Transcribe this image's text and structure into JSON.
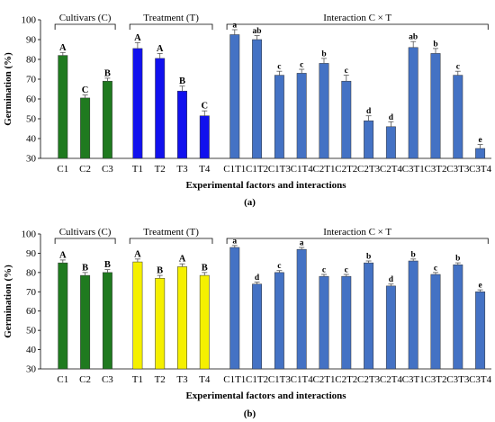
{
  "chart_data": [
    {
      "type": "bar",
      "panel_label": "(a)",
      "ylabel": "Germination (%)",
      "xlabel": "Experimental factors and interactions",
      "ylim": [
        30,
        100
      ],
      "yticks": [
        30,
        40,
        50,
        60,
        70,
        80,
        90,
        100
      ],
      "grid": false,
      "groups": [
        {
          "name": "Cultivars (C)",
          "color": "#1f7a1f",
          "categories": [
            "C1",
            "C2",
            "C3"
          ],
          "values": [
            82,
            60.5,
            69
          ],
          "errors": [
            1.5,
            1.5,
            1.5
          ],
          "letters": [
            "A",
            "C",
            "B"
          ]
        },
        {
          "name": "Treatment (T)",
          "color": "#1111ee",
          "categories": [
            "T1",
            "T2",
            "T3",
            "T4"
          ],
          "values": [
            85.5,
            80.5,
            64,
            51.5
          ],
          "errors": [
            3,
            2.5,
            2.5,
            2.5
          ],
          "letters": [
            "A",
            "A",
            "B",
            "C"
          ]
        },
        {
          "name": "Interaction C × T",
          "color": "#4472c4",
          "categories": [
            "C1T1",
            "C1T2",
            "C1T3",
            "C1T4",
            "C2T1",
            "C2T2",
            "C2T3",
            "C2T4",
            "C3T1",
            "C3T2",
            "C3T3",
            "C3T4"
          ],
          "values": [
            92.5,
            90,
            72,
            73,
            78,
            69,
            49,
            46,
            86,
            83,
            72,
            35
          ],
          "errors": [
            2.5,
            2,
            2,
            2,
            2.5,
            3,
            2.5,
            2.5,
            3,
            2.5,
            2,
            2
          ],
          "letters": [
            "a",
            "ab",
            "c",
            "c",
            "b",
            "c",
            "d",
            "d",
            "ab",
            "b",
            "c",
            "e"
          ]
        }
      ]
    },
    {
      "type": "bar",
      "panel_label": "(b)",
      "ylabel": "Germination (%)",
      "xlabel": "Experimental factors and interactions",
      "ylim": [
        30,
        100
      ],
      "yticks": [
        30,
        40,
        50,
        60,
        70,
        80,
        90,
        100
      ],
      "grid": false,
      "groups": [
        {
          "name": "Cultivars (C)",
          "color": "#1f7a1f",
          "categories": [
            "C1",
            "C2",
            "C3"
          ],
          "values": [
            85,
            78.5,
            80
          ],
          "errors": [
            1.5,
            1.5,
            1.5
          ],
          "letters": [
            "A",
            "B",
            "B"
          ]
        },
        {
          "name": "Treatment (T)",
          "color": "#f5f000",
          "categories": [
            "T1",
            "T2",
            "T3",
            "T4"
          ],
          "values": [
            85.5,
            77,
            83,
            78.5
          ],
          "errors": [
            1.5,
            1.5,
            1.5,
            1.5
          ],
          "letters": [
            "A",
            "B",
            "A",
            "B"
          ]
        },
        {
          "name": "Interaction C × T",
          "color": "#4472c4",
          "categories": [
            "C1T1",
            "C1T2",
            "C1T3",
            "C1T4",
            "C2T1",
            "C2T2",
            "C2T3",
            "C2T4",
            "C3T1",
            "C3T2",
            "C3T3",
            "C3T4"
          ],
          "values": [
            93,
            74,
            80,
            92,
            78,
            78,
            85,
            73,
            86,
            79,
            84,
            70
          ],
          "errors": [
            1,
            1,
            1,
            1,
            1,
            1,
            1,
            1,
            1,
            1,
            1,
            1
          ],
          "letters": [
            "a",
            "d",
            "c",
            "a",
            "c",
            "c",
            "b",
            "d",
            "b",
            "c",
            "b",
            "e"
          ]
        }
      ]
    }
  ]
}
